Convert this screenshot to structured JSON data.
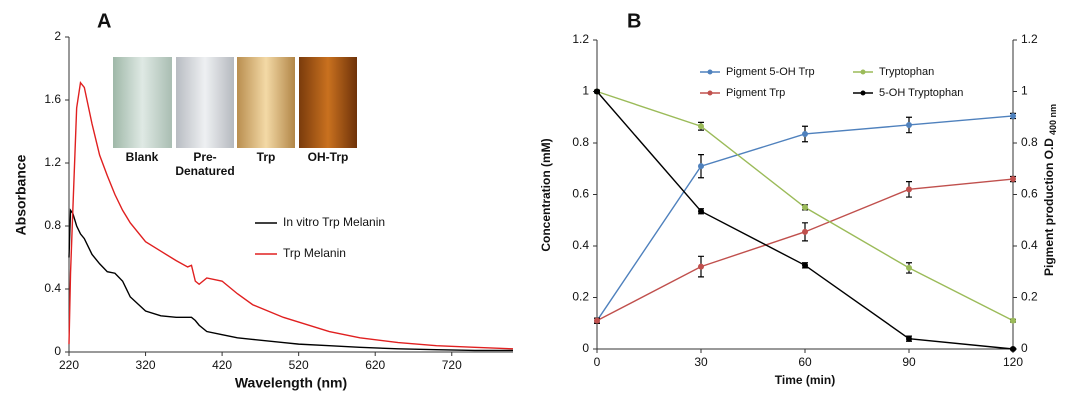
{
  "chart_data": [
    {
      "type": "line",
      "panel": "A",
      "xlabel": "Wavelength (nm)",
      "ylabel": "Absorbance",
      "xlim": [
        220,
        800
      ],
      "xticks": [
        220,
        320,
        420,
        520,
        620,
        720
      ],
      "ylim": [
        0,
        2
      ],
      "yticks": [
        0,
        0.4,
        0.8,
        1.2,
        1.6,
        2
      ],
      "x": [
        220,
        222,
        225,
        230,
        235,
        240,
        250,
        260,
        270,
        280,
        290,
        300,
        320,
        340,
        360,
        375,
        380,
        385,
        390,
        400,
        420,
        440,
        460,
        500,
        520,
        560,
        600,
        650,
        700,
        750,
        800
      ],
      "series": [
        {
          "name": "In vitro Trp Melanin",
          "color": "#000000",
          "values": [
            0.6,
            0.9,
            0.88,
            0.8,
            0.75,
            0.72,
            0.62,
            0.56,
            0.51,
            0.5,
            0.45,
            0.35,
            0.26,
            0.23,
            0.22,
            0.22,
            0.22,
            0.2,
            0.17,
            0.13,
            0.11,
            0.09,
            0.08,
            0.06,
            0.05,
            0.04,
            0.03,
            0.02,
            0.015,
            0.01,
            0.01
          ]
        },
        {
          "name": "Trp Melanin",
          "color": "#e02020",
          "values": [
            0.05,
            0.5,
            0.9,
            1.55,
            1.71,
            1.68,
            1.45,
            1.25,
            1.12,
            1.0,
            0.9,
            0.82,
            0.7,
            0.64,
            0.58,
            0.54,
            0.55,
            0.45,
            0.43,
            0.47,
            0.45,
            0.37,
            0.3,
            0.22,
            0.19,
            0.13,
            0.09,
            0.06,
            0.04,
            0.03,
            0.02
          ]
        }
      ],
      "inset_labels": [
        [
          "Blank"
        ],
        [
          "Pre-",
          "Denatured"
        ],
        [
          "Trp"
        ],
        [
          "OH-Trp"
        ]
      ]
    },
    {
      "type": "line",
      "panel": "B",
      "xlabel": "Time (min)",
      "ylabel": "Concentration (mM)",
      "y2label": "Pigment production O.D",
      "y2label_sub": "400 nm",
      "xlim": [
        0,
        120
      ],
      "xticks": [
        0,
        30,
        60,
        90,
        120
      ],
      "ylim": [
        0,
        1.2
      ],
      "yticks": [
        0,
        0.2,
        0.4,
        0.6,
        0.8,
        1,
        1.2
      ],
      "y2lim": [
        0,
        1.2
      ],
      "y2ticks": [
        0,
        0.2,
        0.4,
        0.6,
        0.8,
        1,
        1.2
      ],
      "markers": true,
      "x": [
        0,
        30,
        60,
        90,
        120
      ],
      "series": [
        {
          "name": "Pigment 5-OH Trp",
          "color": "#4f81bd",
          "axis": "y2",
          "values": [
            0.11,
            0.71,
            0.835,
            0.87,
            0.905
          ],
          "errors": [
            0.01,
            0.045,
            0.03,
            0.03,
            0.01
          ]
        },
        {
          "name": "Pigment  Trp",
          "color": "#c0504d",
          "axis": "y2",
          "values": [
            0.11,
            0.32,
            0.455,
            0.62,
            0.66
          ],
          "errors": [
            0.01,
            0.04,
            0.035,
            0.03,
            0.01
          ]
        },
        {
          "name": "Tryptophan",
          "color": "#9bbb59",
          "values": [
            1.0,
            0.865,
            0.55,
            0.315,
            0.11
          ],
          "errors": [
            0.005,
            0.015,
            0.01,
            0.02,
            0.005
          ]
        },
        {
          "name": "5-OH Tryptophan",
          "color": "#000000",
          "values": [
            1.0,
            0.535,
            0.325,
            0.04,
            0.0
          ],
          "errors": [
            0.005,
            0.01,
            0.01,
            0.01,
            0.003
          ]
        }
      ]
    }
  ]
}
